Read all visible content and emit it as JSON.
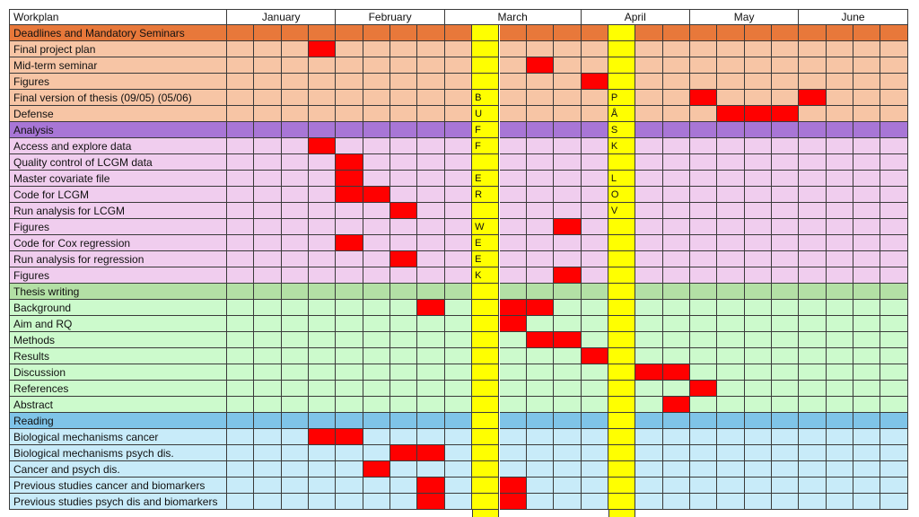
{
  "header_label": "Workplan",
  "months": [
    "January",
    "February",
    "March",
    "April",
    "May",
    "June"
  ],
  "weeks_per_month": [
    4,
    4,
    5,
    4,
    4,
    4
  ],
  "colors": {
    "deadlines_header": "#e8783a",
    "deadlines_row": "#f7c5a5",
    "analysis_header": "#a876d6",
    "analysis_row": "#f0cdee",
    "writing_header": "#b3e0a5",
    "writing_row": "#ccfacc",
    "reading_header": "#7fc4e8",
    "reading_row": "#c8ebf9",
    "task": "#ff0000",
    "break": "#ffff00",
    "header_bg": "#ffffff"
  },
  "break_weeks": [
    {
      "week": 9,
      "letters": [
        "",
        "",
        "",
        "",
        "B",
        "U",
        "F",
        "F",
        "",
        "E",
        "R",
        "",
        "W",
        "E",
        "E",
        "K",
        "",
        "",
        "",
        "",
        "",
        "",
        "",
        "",
        "",
        "",
        "",
        "",
        ""
      ]
    },
    {
      "week": 14,
      "letters": [
        "",
        "",
        "",
        "",
        "P",
        "Å",
        "S",
        "K",
        "",
        "L",
        "O",
        "V",
        "",
        "",
        "",
        "",
        "",
        "",
        "",
        "",
        "",
        "",
        "",
        "",
        "",
        "",
        "",
        "",
        ""
      ]
    }
  ],
  "sections": [
    {
      "title": "Deadlines and Mandatory Seminars",
      "header_color": "deadlines_header",
      "row_color": "deadlines_row",
      "rows": [
        {
          "label": "Final project plan",
          "filled": [
            3
          ]
        },
        {
          "label": "Mid-term seminar",
          "filled": [
            11
          ]
        },
        {
          "label": "Figures",
          "filled": [
            13
          ]
        },
        {
          "label": "Final version of thesis (09/05) (05/06)",
          "filled": [
            17,
            21
          ]
        },
        {
          "label": "Defense",
          "filled": [
            18,
            19,
            20
          ]
        }
      ]
    },
    {
      "title": "Analysis",
      "header_color": "analysis_header",
      "row_color": "analysis_row",
      "rows": [
        {
          "label": "Access and explore data",
          "filled": [
            3
          ]
        },
        {
          "label": "Quality control of LCGM data",
          "filled": [
            4
          ]
        },
        {
          "label": "Master covariate file",
          "filled": [
            4
          ]
        },
        {
          "label": "Code for LCGM",
          "filled": [
            4,
            5
          ]
        },
        {
          "label": "Run analysis for LCGM",
          "filled": [
            6
          ]
        },
        {
          "label": "Figures",
          "filled": [
            12
          ]
        },
        {
          "label": "Code for Cox regression",
          "filled": [
            4
          ]
        },
        {
          "label": "Run analysis for regression",
          "filled": [
            6
          ]
        },
        {
          "label": "Figures",
          "filled": [
            12
          ]
        }
      ]
    },
    {
      "title": "Thesis writing",
      "header_color": "writing_header",
      "row_color": "writing_row",
      "rows": [
        {
          "label": "Background",
          "filled": [
            7,
            10,
            11
          ]
        },
        {
          "label": "Aim and RQ",
          "filled": [
            10
          ]
        },
        {
          "label": "Methods",
          "filled": [
            11,
            12
          ]
        },
        {
          "label": "Results",
          "filled": [
            13
          ]
        },
        {
          "label": "Discussion",
          "filled": [
            15,
            16
          ]
        },
        {
          "label": "References",
          "filled": [
            17
          ]
        },
        {
          "label": "Abstract",
          "filled": [
            16
          ]
        }
      ]
    },
    {
      "title": "Reading",
      "header_color": "reading_header",
      "row_color": "reading_row",
      "rows": [
        {
          "label": "Biological mechanisms cancer",
          "filled": [
            3,
            4
          ]
        },
        {
          "label": "Biological mechanisms psych dis.",
          "filled": [
            6,
            7
          ]
        },
        {
          "label": "Cancer and psych dis.",
          "filled": [
            5
          ]
        },
        {
          "label": "Previous studies cancer and biomarkers",
          "filled": [
            7,
            10
          ]
        },
        {
          "label": "Previous studies psych dis and biomarkers",
          "filled": [
            7,
            10
          ]
        }
      ]
    }
  ]
}
